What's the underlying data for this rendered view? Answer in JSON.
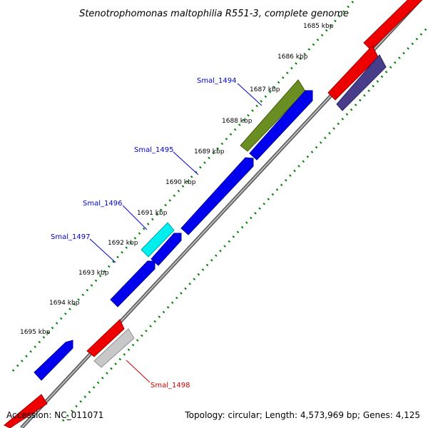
{
  "title": "Stenotrophomonas maltophilia R551-3, complete genome",
  "footer": {
    "accession": "Accession: NC_011071",
    "summary": "Topology: circular; Length: 4,573,969 bp; Genes: 4,125"
  },
  "ticks": [
    "1685 kbp",
    "1686 kbp",
    "1687 kbp",
    "1688 kbp",
    "1689 kbp",
    "1690 kbp",
    "1691 kbp",
    "1692 kbp",
    "1693 kbp",
    "1694 kbp",
    "1695 kbp"
  ],
  "gene_labels": [
    {
      "name": "Smal_1494",
      "color": "#0000cc"
    },
    {
      "name": "Smal_1495",
      "color": "#0000cc"
    },
    {
      "name": "Smal_1496",
      "color": "#0000cc"
    },
    {
      "name": "Smal_1497",
      "color": "#0000cc"
    },
    {
      "name": "Smal_1498",
      "color": "#cc0000"
    }
  ],
  "colors": {
    "cds_blue": "#0000ee",
    "olive": "#6b8e23",
    "cyan": "#00eeee",
    "red": "#ee0000",
    "grey": "#c8c8c8",
    "slate": "#483d8b",
    "backbone": "#808080",
    "tick_dots": "#008000"
  }
}
